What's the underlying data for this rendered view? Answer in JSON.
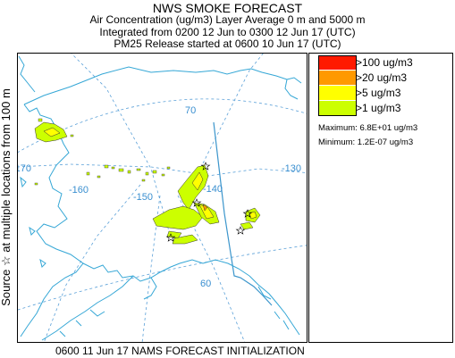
{
  "header": {
    "title": "NWS SMOKE FORECAST",
    "line2": "Air Concentration (ug/m3) Layer Average    0 m and  5000 m",
    "line3": "Integrated from 0200 12 Jun to 0300 12 Jun 17 (UTC)",
    "line4": "PM25 Release started at 0600 10 Jun 17 (UTC)"
  },
  "side_label": "Source ☆ at multiple locations  from   100 m",
  "footer": "0600 11 Jun 17 NAMS FORECAST INITIALIZATION",
  "legend": {
    "items": [
      {
        "label": ">100 ug/m3",
        "color": "#ff1a00"
      },
      {
        "label": ">20 ug/m3",
        "color": "#ff9900"
      },
      {
        "label": ">5 ug/m3",
        "color": "#ffff00"
      },
      {
        "label": ">1 ug/m3",
        "color": "#ccff00"
      }
    ],
    "maximum": "Maximum: 6.8E+01 ug/m3",
    "minimum": "Minimum: 1.2E-07 ug/m3"
  },
  "map": {
    "grid_labels": {
      "lat70": "70",
      "lat60": "60",
      "lon170": "-170",
      "lon160": "-160",
      "lon150": "-150",
      "lon140": "-140",
      "lon130": "-130"
    },
    "colors": {
      "coast": "#35a7d6",
      "grid": "#5aa0d8",
      "border": "#3c96cc",
      "smoke_light": "#ccff00",
      "smoke_mid": "#ffff00",
      "smoke_orange": "#ff9900"
    },
    "source_marker": "star-icon"
  }
}
